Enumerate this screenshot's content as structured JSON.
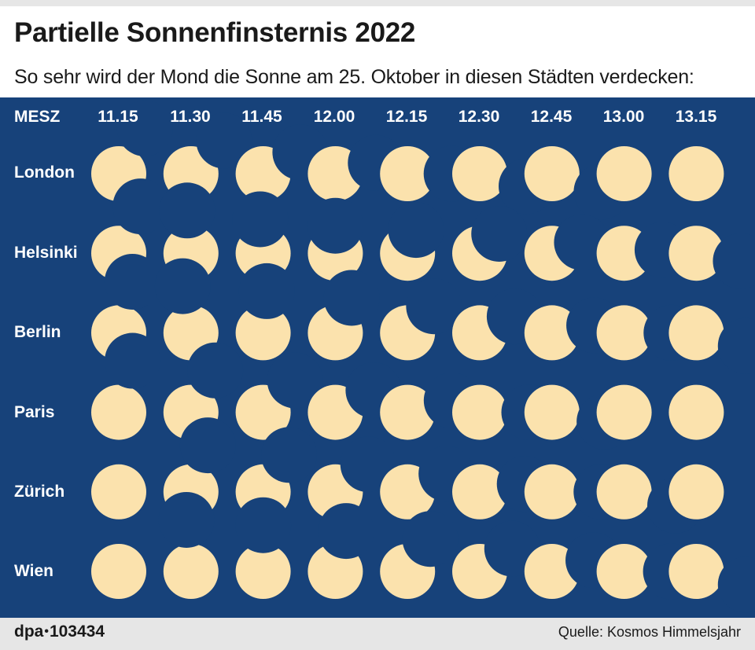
{
  "header": {
    "title": "Partielle Sonnenfinsternis 2022",
    "subtitle": "So sehr wird der Mond die Sonne am 25. Oktober in diesen Städten verdecken:"
  },
  "grid": {
    "timezone_label": "MESZ",
    "times": [
      "11.15",
      "11.30",
      "11.45",
      "12.00",
      "12.15",
      "12.30",
      "12.45",
      "13.00",
      "13.15"
    ],
    "colors": {
      "background": "#17427a",
      "sun": "#fbe2ad"
    },
    "cities": [
      {
        "name": "London",
        "coverage": [
          {
            "angle": 60,
            "overlap": 0.05
          },
          {
            "angle": 45,
            "overlap": 0.15
          },
          {
            "angle": 30,
            "overlap": 0.22
          },
          {
            "angle": 15,
            "overlap": 0.24
          },
          {
            "angle": 0,
            "overlap": 0.2
          },
          {
            "angle": -15,
            "overlap": 0.12
          },
          {
            "angle": -20,
            "overlap": 0.04
          },
          {
            "angle": 0,
            "overlap": 0
          },
          {
            "angle": 0,
            "overlap": 0
          }
        ]
      },
      {
        "name": "Helsinki",
        "coverage": [
          {
            "angle": 65,
            "overlap": 0.06
          },
          {
            "angle": 95,
            "overlap": 0.22
          },
          {
            "angle": 95,
            "overlap": 0.38
          },
          {
            "angle": 90,
            "overlap": 0.5
          },
          {
            "angle": 70,
            "overlap": 0.55
          },
          {
            "angle": 45,
            "overlap": 0.5
          },
          {
            "angle": 20,
            "overlap": 0.42
          },
          {
            "angle": 5,
            "overlap": 0.3
          },
          {
            "angle": -10,
            "overlap": 0.18
          }
        ]
      },
      {
        "name": "Berlin",
        "coverage": [
          {
            "angle": 75,
            "overlap": 0.04
          },
          {
            "angle": 100,
            "overlap": 0.14
          },
          {
            "angle": 85,
            "overlap": 0.24
          },
          {
            "angle": 65,
            "overlap": 0.3
          },
          {
            "angle": 45,
            "overlap": 0.32
          },
          {
            "angle": 25,
            "overlap": 0.3
          },
          {
            "angle": 10,
            "overlap": 0.22
          },
          {
            "angle": 0,
            "overlap": 0.14
          },
          {
            "angle": -15,
            "overlap": 0.07
          }
        ]
      },
      {
        "name": "Paris",
        "coverage": [
          {
            "angle": 75,
            "overlap": 0.03
          },
          {
            "angle": 60,
            "overlap": 0.12
          },
          {
            "angle": 45,
            "overlap": 0.18
          },
          {
            "angle": 30,
            "overlap": 0.2
          },
          {
            "angle": 15,
            "overlap": 0.17
          },
          {
            "angle": 0,
            "overlap": 0.1
          },
          {
            "angle": -10,
            "overlap": 0.03
          },
          {
            "angle": 0,
            "overlap": 0
          },
          {
            "angle": 0,
            "overlap": 0
          }
        ]
      },
      {
        "name": "Zürich",
        "coverage": [
          {
            "angle": 0,
            "overlap": 0
          },
          {
            "angle": 70,
            "overlap": 0.1
          },
          {
            "angle": 55,
            "overlap": 0.18
          },
          {
            "angle": 40,
            "overlap": 0.22
          },
          {
            "angle": 25,
            "overlap": 0.22
          },
          {
            "angle": 10,
            "overlap": 0.17
          },
          {
            "angle": 0,
            "overlap": 0.1
          },
          {
            "angle": -15,
            "overlap": 0.04
          },
          {
            "angle": 0,
            "overlap": 0
          }
        ]
      },
      {
        "name": "Wien",
        "coverage": [
          {
            "angle": 0,
            "overlap": 0
          },
          {
            "angle": 95,
            "overlap": 0.06
          },
          {
            "angle": 90,
            "overlap": 0.16
          },
          {
            "angle": 75,
            "overlap": 0.24
          },
          {
            "angle": 55,
            "overlap": 0.28
          },
          {
            "angle": 35,
            "overlap": 0.28
          },
          {
            "angle": 15,
            "overlap": 0.22
          },
          {
            "angle": 0,
            "overlap": 0.15
          },
          {
            "angle": -15,
            "overlap": 0.07
          }
        ]
      }
    ]
  },
  "footer": {
    "logo_left": "dpa",
    "logo_dot": "•",
    "logo_number": "103434",
    "source": "Quelle: Kosmos Himmelsjahr"
  }
}
